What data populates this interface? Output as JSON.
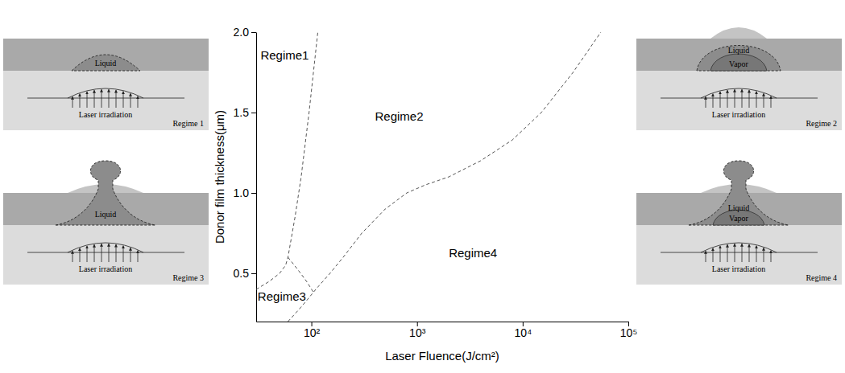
{
  "chart_data": {
    "type": "line",
    "x_label": "Laser Fluence(J/cm²)",
    "y_label": "Donor film thickness(μm)",
    "log": "x",
    "grid": false,
    "xlim": [
      30,
      100000
    ],
    "ylim": [
      0.2,
      2.0
    ],
    "xticks": [
      {
        "value": 100,
        "label": "10²"
      },
      {
        "value": 1000,
        "label": "10³"
      },
      {
        "value": 10000,
        "label": "10⁴"
      },
      {
        "value": 100000,
        "label": "10⁵"
      }
    ],
    "yticks": [
      0.5,
      {
        "value": 1.0,
        "label": "1.0"
      },
      1.5,
      {
        "value": 2.0,
        "label": "2.0"
      }
    ],
    "series": [
      {
        "color": "#555555",
        "line_style": "dashed",
        "x": [
          30,
          40,
          50,
          57,
          60,
          70,
          80,
          95,
          115
        ],
        "values": [
          0.4,
          0.45,
          0.5,
          0.55,
          0.6,
          0.85,
          1.1,
          1.5,
          2.0
        ]
      },
      {
        "color": "#555555",
        "line_style": "dashed",
        "x": [
          60,
          75,
          90,
          105
        ],
        "values": [
          0.6,
          0.52,
          0.45,
          0.38
        ]
      },
      {
        "color": "#555555",
        "line_style": "dashed",
        "x": [
          60,
          75,
          90,
          110,
          150,
          200,
          300,
          500,
          800,
          1200,
          2000,
          4000,
          8000,
          15000,
          30000,
          55000
        ],
        "values": [
          0.2,
          0.27,
          0.33,
          0.4,
          0.5,
          0.6,
          0.75,
          0.9,
          1.0,
          1.05,
          1.1,
          1.2,
          1.33,
          1.5,
          1.75,
          2.0
        ]
      }
    ],
    "annotations": [
      {
        "text": "Regime1",
        "x": 33,
        "y": 1.83
      },
      {
        "text": "Regime2",
        "x": 400,
        "y": 1.45
      },
      {
        "text": "Regime3",
        "x": 31,
        "y": 0.33
      },
      {
        "text": "Regime4",
        "x": 2000,
        "y": 0.6
      }
    ]
  },
  "insets": [
    {
      "label": "Regime 1",
      "shape": "bump",
      "liquid": "Liquid",
      "laser": "Laser irradiation"
    },
    {
      "label": "Regime 2",
      "shape": "bump",
      "liquid": "Liquid",
      "vapor": "Vapor",
      "laser": "Laser irradiation"
    },
    {
      "label": "Regime 3",
      "shape": "jet",
      "liquid": "Liquid",
      "laser": "Laser irradiation"
    },
    {
      "label": "Regime 4",
      "shape": "jet",
      "liquid": "Liquid",
      "vapor": "Vapor",
      "laser": "Laser irradiation"
    }
  ]
}
